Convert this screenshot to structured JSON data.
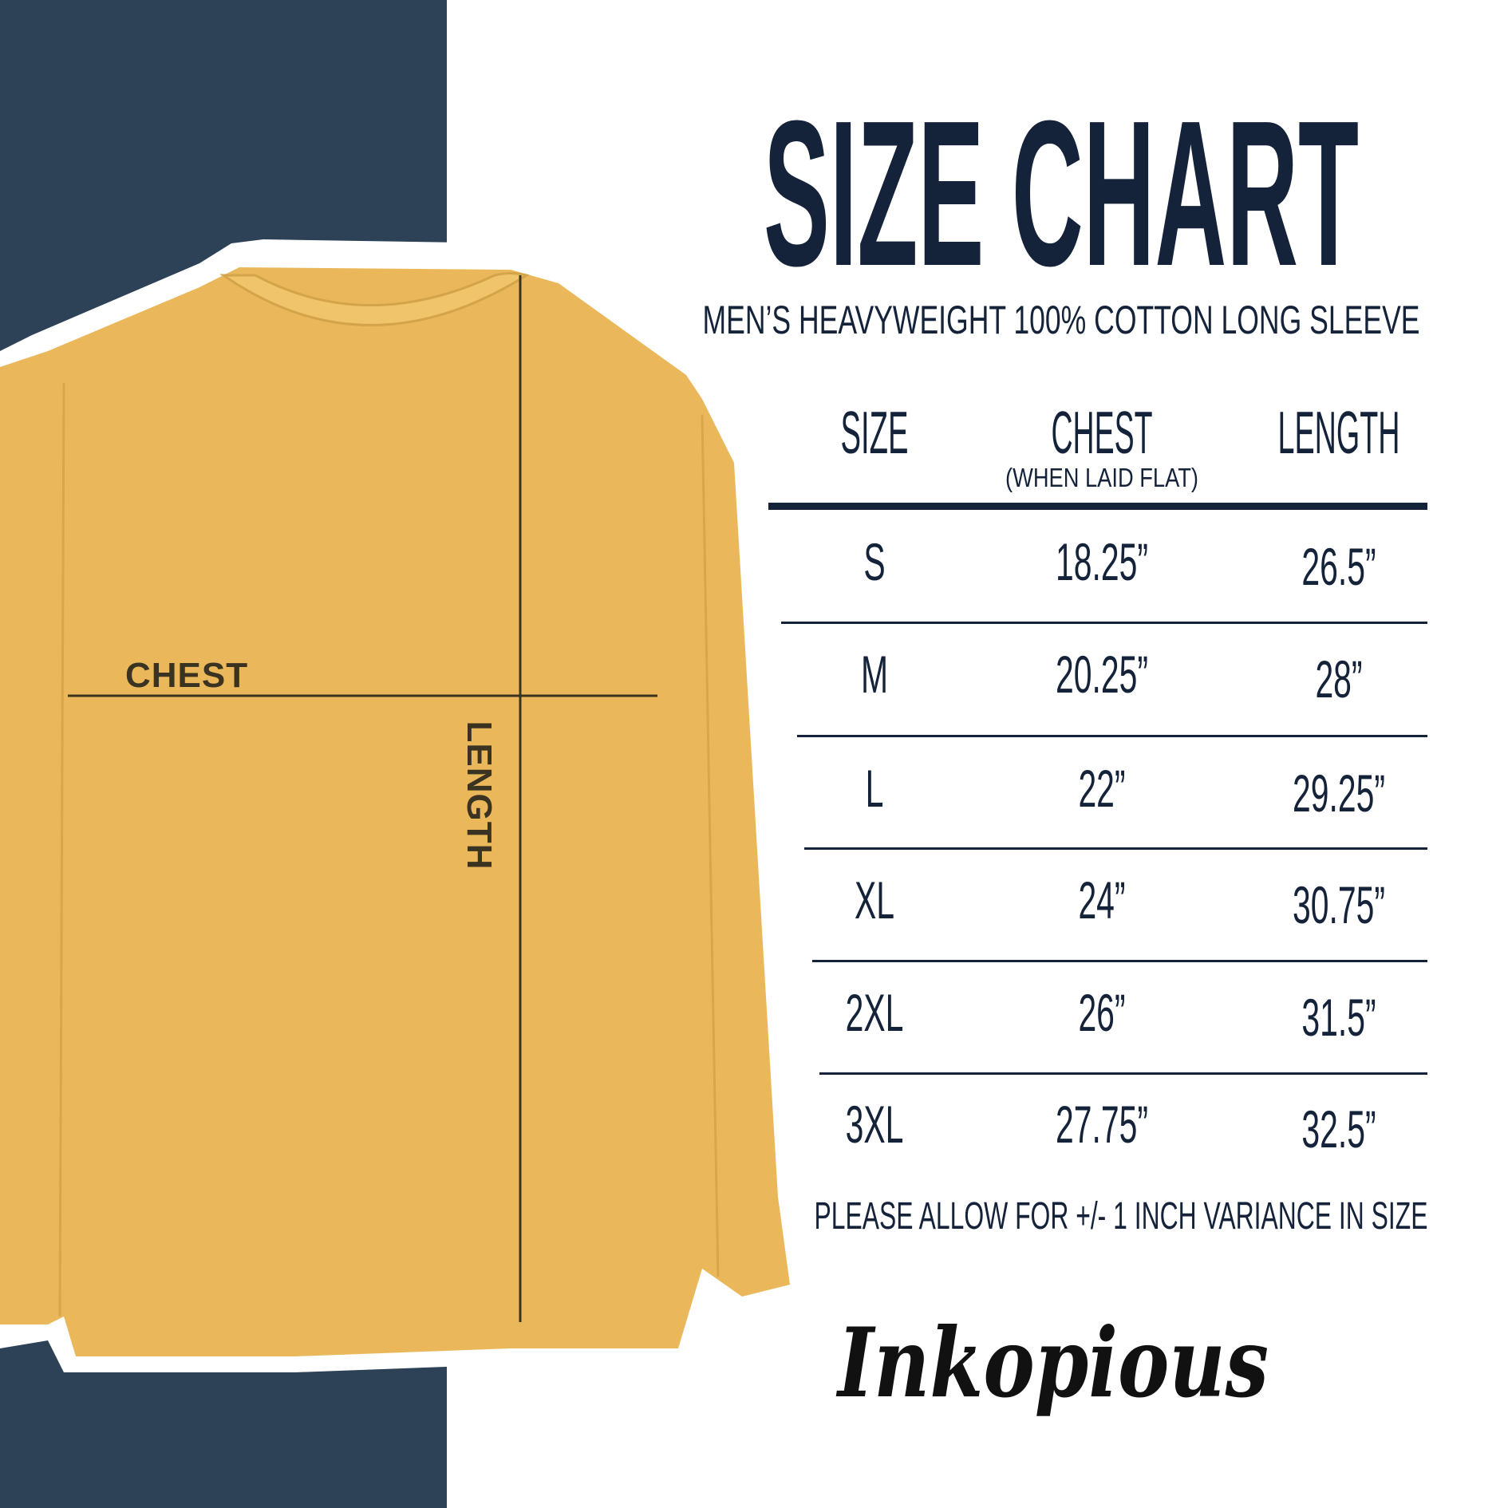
{
  "title": "SIZE CHART",
  "subtitle": "MEN’S HEAVYWEIGHT 100% COTTON LONG SLEEVE",
  "table": {
    "headers": {
      "size": "SIZE",
      "chest": "CHEST",
      "chest_note": "(WHEN LAID FLAT)",
      "length": "LENGTH"
    },
    "rows": [
      {
        "size": "S",
        "chest": "18.25”",
        "length": "26.5”"
      },
      {
        "size": "M",
        "chest": "20.25”",
        "length": "28”"
      },
      {
        "size": "L",
        "chest": "22”",
        "length": "29.25”"
      },
      {
        "size": "XL",
        "chest": "24”",
        "length": "30.75”"
      },
      {
        "size": "2XL",
        "chest": "26”",
        "length": "31.5”"
      },
      {
        "size": "3XL",
        "chest": "27.75”",
        "length": "32.5”"
      }
    ]
  },
  "note": "PLEASE ALLOW FOR +/- 1 INCH VARIANCE IN SIZE",
  "shirt_labels": {
    "chest": "CHEST",
    "length": "LENGTH"
  },
  "brand": "Inkopious",
  "colors": {
    "panel": "#2d4157",
    "text": "#14233a",
    "shirt": "#eab85a"
  }
}
